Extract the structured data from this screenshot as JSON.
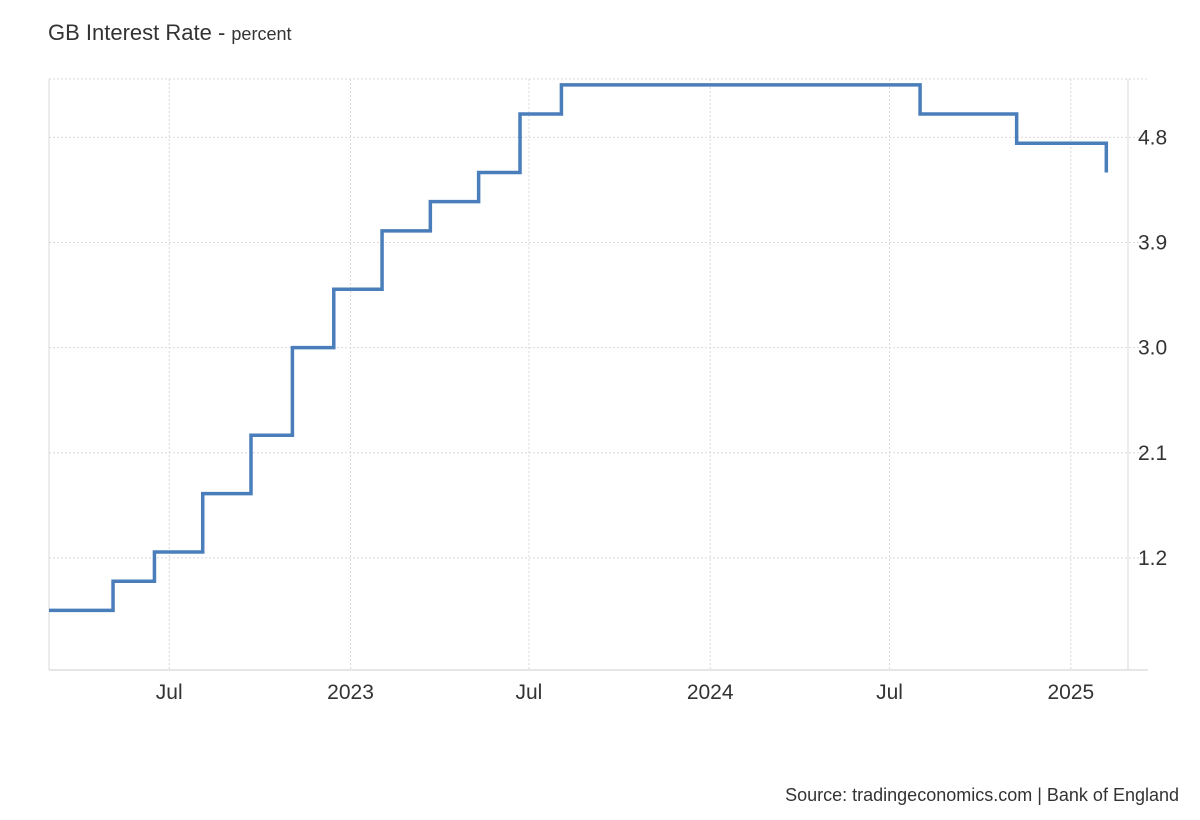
{
  "chart_data": {
    "type": "line",
    "step": true,
    "title": "GB Interest Rate",
    "unit": "percent",
    "source": "Source: tradingeconomics.com | Bank of England",
    "colors": {
      "line": "#4a7ebb",
      "grid": "#d9d9d9",
      "axis": "#cccccc",
      "text": "#333333"
    },
    "grid": true,
    "xlim": [
      "2022-03-01",
      "2025-02-28"
    ],
    "ylim": [
      0.24,
      5.3
    ],
    "x_ticks": [
      {
        "date": "2022-07-01",
        "label": "Jul"
      },
      {
        "date": "2023-01-01",
        "label": "2023"
      },
      {
        "date": "2023-07-01",
        "label": "Jul"
      },
      {
        "date": "2024-01-01",
        "label": "2024"
      },
      {
        "date": "2024-07-01",
        "label": "Jul"
      },
      {
        "date": "2025-01-01",
        "label": "2025"
      }
    ],
    "y_ticks": [
      {
        "value": 1.2,
        "label": "1.2"
      },
      {
        "value": 2.1,
        "label": "2.1"
      },
      {
        "value": 3.0,
        "label": "3.0"
      },
      {
        "value": 3.9,
        "label": "3.9"
      },
      {
        "value": 4.8,
        "label": "4.8"
      }
    ],
    "series": [
      {
        "points": [
          {
            "date": "2022-03-01",
            "value": 0.75
          },
          {
            "date": "2022-05-05",
            "value": 1.0
          },
          {
            "date": "2022-06-16",
            "value": 1.25
          },
          {
            "date": "2022-08-04",
            "value": 1.75
          },
          {
            "date": "2022-09-22",
            "value": 2.25
          },
          {
            "date": "2022-11-03",
            "value": 3.0
          },
          {
            "date": "2022-12-15",
            "value": 3.5
          },
          {
            "date": "2023-02-02",
            "value": 4.0
          },
          {
            "date": "2023-03-23",
            "value": 4.25
          },
          {
            "date": "2023-05-11",
            "value": 4.5
          },
          {
            "date": "2023-06-22",
            "value": 5.0
          },
          {
            "date": "2023-08-03",
            "value": 5.25
          },
          {
            "date": "2024-08-01",
            "value": 5.0
          },
          {
            "date": "2024-11-07",
            "value": 4.75
          },
          {
            "date": "2025-02-06",
            "value": 4.5
          }
        ]
      }
    ]
  }
}
